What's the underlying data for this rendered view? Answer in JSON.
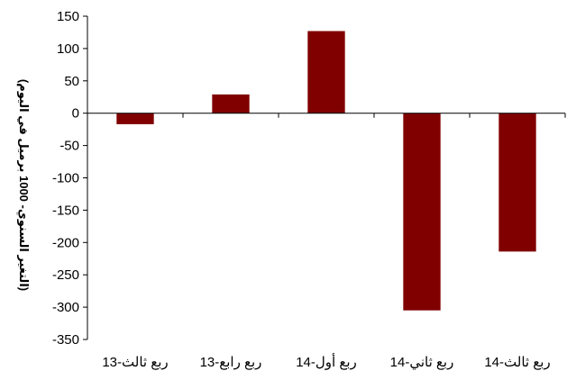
{
  "chart_data": {
    "type": "bar",
    "title": "",
    "xlabel": "",
    "ylabel": "(التغير السنوي- 1000 برميل في اليوم)",
    "categories": [
      "ربع ثالث-13",
      "ربع رابع-13",
      "ربع أول-14",
      "ربع ثاني-14",
      "ربع ثالث-14"
    ],
    "values": [
      -17,
      29,
      127,
      -305,
      -214
    ],
    "ylim": [
      -350,
      150
    ],
    "yticks": [
      150,
      100,
      50,
      0,
      -50,
      -100,
      -150,
      -200,
      -250,
      -300,
      -350
    ],
    "ytick_labels": [
      "150",
      "100",
      "50",
      "0",
      "-50",
      "-100",
      "-150",
      "-200",
      "-250",
      "-300",
      "-350"
    ],
    "grid": false,
    "legend": "none",
    "colors": {
      "bar": "#800000",
      "axis": "#000000"
    }
  }
}
